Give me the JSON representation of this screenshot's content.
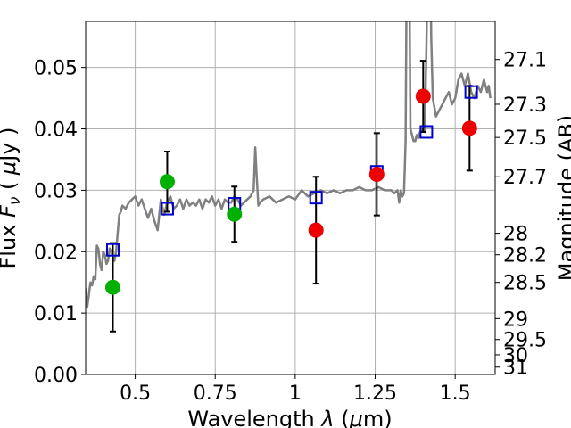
{
  "chart_data": {
    "type": "scatter",
    "title": "",
    "xlabel_parts": [
      "Wavelength  ",
      "λ",
      " (",
      "μ",
      "m)"
    ],
    "ylabel_parts": [
      "Flux  ",
      "F",
      "ν",
      "  ( ",
      "μ",
      "Jy )"
    ],
    "y2label": "Magnitude (AB)",
    "xlim": [
      0.345,
      1.625
    ],
    "ylim": [
      0.0,
      0.0575
    ],
    "grid": true,
    "x_ticks": [
      {
        "value": 0.5,
        "label": "0.5"
      },
      {
        "value": 0.75,
        "label": "0.75"
      },
      {
        "value": 1.0,
        "label": "1"
      },
      {
        "value": 1.25,
        "label": "1.25"
      },
      {
        "value": 1.5,
        "label": "1.5"
      }
    ],
    "y_ticks": [
      {
        "value": 0.0,
        "label": "0.00"
      },
      {
        "value": 0.01,
        "label": "0.01"
      },
      {
        "value": 0.02,
        "label": "0.02"
      },
      {
        "value": 0.03,
        "label": "0.03"
      },
      {
        "value": 0.04,
        "label": "0.04"
      },
      {
        "value": 0.05,
        "label": "0.05"
      }
    ],
    "y2_ticks": [
      {
        "flux": 0.0513,
        "label": "27.1"
      },
      {
        "flux": 0.044,
        "label": "27.3"
      },
      {
        "flux": 0.0386,
        "label": "27.5"
      },
      {
        "flux": 0.0322,
        "label": "27.7"
      },
      {
        "flux": 0.023,
        "label": "28"
      },
      {
        "flux": 0.0195,
        "label": "28.2"
      },
      {
        "flux": 0.015,
        "label": "28.5"
      },
      {
        "flux": 0.0091,
        "label": "29"
      },
      {
        "flux": 0.0057,
        "label": "29.5"
      },
      {
        "flux": 0.0032,
        "label": "30"
      },
      {
        "flux": 0.0012,
        "label": "31"
      }
    ],
    "series": [
      {
        "kind": "line",
        "color": "#808080",
        "x": [
          0.345,
          0.35,
          0.355,
          0.36,
          0.365,
          0.37,
          0.375,
          0.38,
          0.385,
          0.39,
          0.395,
          0.4,
          0.405,
          0.41,
          0.415,
          0.42,
          0.425,
          0.43,
          0.435,
          0.44,
          0.445,
          0.45,
          0.455,
          0.46,
          0.47,
          0.48,
          0.49,
          0.5,
          0.51,
          0.52,
          0.53,
          0.54,
          0.55,
          0.56,
          0.57,
          0.58,
          0.59,
          0.6,
          0.61,
          0.62,
          0.63,
          0.64,
          0.65,
          0.66,
          0.67,
          0.68,
          0.69,
          0.7,
          0.71,
          0.72,
          0.73,
          0.74,
          0.75,
          0.76,
          0.77,
          0.78,
          0.79,
          0.8,
          0.81,
          0.82,
          0.83,
          0.84,
          0.85,
          0.86,
          0.87,
          0.875,
          0.88,
          0.885,
          0.89,
          0.9,
          0.92,
          0.94,
          0.96,
          0.98,
          1.0,
          1.02,
          1.04,
          1.06,
          1.08,
          1.1,
          1.12,
          1.14,
          1.16,
          1.18,
          1.2,
          1.22,
          1.24,
          1.26,
          1.28,
          1.3,
          1.31,
          1.32,
          1.325,
          1.33,
          1.335,
          1.34,
          1.345,
          1.35,
          1.355,
          1.36,
          1.365,
          1.37,
          1.375,
          1.38,
          1.385,
          1.39,
          1.4,
          1.405,
          1.41,
          1.415,
          1.42,
          1.425,
          1.43,
          1.44,
          1.45,
          1.46,
          1.47,
          1.48,
          1.49,
          1.5,
          1.51,
          1.52,
          1.53,
          1.54,
          1.55,
          1.56,
          1.57,
          1.58,
          1.59,
          1.6,
          1.605,
          1.61
        ],
        "y": [
          0.014,
          0.011,
          0.013,
          0.015,
          0.0145,
          0.016,
          0.0155,
          0.021,
          0.0205,
          0.018,
          0.017,
          0.02,
          0.0195,
          0.018,
          0.0185,
          0.0205,
          0.02,
          0.019,
          0.0185,
          0.02,
          0.023,
          0.026,
          0.0265,
          0.0275,
          0.027,
          0.028,
          0.0285,
          0.029,
          0.0275,
          0.0285,
          0.027,
          0.0255,
          0.027,
          0.025,
          0.0235,
          0.0285,
          0.026,
          0.028,
          0.029,
          0.027,
          0.0275,
          0.0285,
          0.027,
          0.0285,
          0.0275,
          0.028,
          0.0275,
          0.0285,
          0.027,
          0.0285,
          0.028,
          0.029,
          0.0275,
          0.0285,
          0.027,
          0.0285,
          0.028,
          0.028,
          0.029,
          0.0285,
          0.0275,
          0.028,
          0.0285,
          0.029,
          0.03,
          0.037,
          0.032,
          0.0275,
          0.028,
          0.0285,
          0.029,
          0.028,
          0.0285,
          0.029,
          0.0285,
          0.03,
          0.029,
          0.0295,
          0.03,
          0.0295,
          0.03,
          0.0295,
          0.03,
          0.03,
          0.0305,
          0.03,
          0.03,
          0.0305,
          0.03,
          0.03,
          0.0295,
          0.03,
          0.028,
          0.03,
          0.029,
          0.0295,
          0.038,
          0.08,
          0.08,
          0.04,
          0.039,
          0.038,
          0.038,
          0.039,
          0.0385,
          0.0395,
          0.04,
          0.0395,
          0.053,
          0.07,
          0.08,
          0.055,
          0.045,
          0.042,
          0.043,
          0.044,
          0.045,
          0.046,
          0.044,
          0.045,
          0.048,
          0.049,
          0.047,
          0.049,
          0.046,
          0.045,
          0.047,
          0.046,
          0.048,
          0.046,
          0.047,
          0.045
        ]
      },
      {
        "kind": "squares",
        "color": "#0000cc",
        "x": [
          0.43,
          0.6,
          0.81,
          1.065,
          1.255,
          1.41,
          1.55
        ],
        "y": [
          0.0203,
          0.027,
          0.0278,
          0.0288,
          0.033,
          0.0395,
          0.046
        ]
      },
      {
        "kind": "points",
        "color": "#00b000",
        "x": [
          0.43,
          0.6,
          0.81
        ],
        "y": [
          0.0142,
          0.0314,
          0.0261
        ],
        "err": [
          0.0072,
          0.0049,
          0.0045
        ]
      },
      {
        "kind": "points",
        "color": "#ee0000",
        "x": [
          1.065,
          1.255,
          1.4,
          1.545
        ],
        "y": [
          0.0235,
          0.0326,
          0.0453,
          0.0401
        ],
        "err": [
          0.0087,
          0.0067,
          0.0058,
          0.0069
        ]
      }
    ]
  }
}
